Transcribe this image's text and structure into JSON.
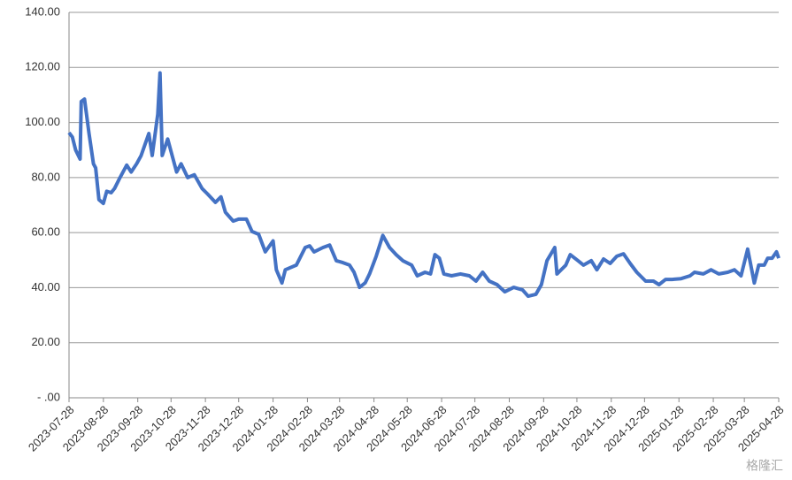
{
  "chart_data": {
    "type": "line",
    "x": [
      "2023-07-28",
      "2023-07-31",
      "2023-08-03",
      "2023-08-07",
      "2023-08-08",
      "2023-08-11",
      "2023-08-15",
      "2023-08-19",
      "2023-08-21",
      "2023-08-24",
      "2023-08-28",
      "2023-08-31",
      "2023-09-04",
      "2023-09-07",
      "2023-09-12",
      "2023-09-18",
      "2023-09-22",
      "2023-09-27",
      "2023-10-01",
      "2023-10-08",
      "2023-10-11",
      "2023-10-16",
      "2023-10-18",
      "2023-10-20",
      "2023-10-25",
      "2023-10-29",
      "2023-11-02",
      "2023-11-06",
      "2023-11-12",
      "2023-11-18",
      "2023-11-25",
      "2023-11-30",
      "2023-12-07",
      "2023-12-12",
      "2023-12-16",
      "2023-12-23",
      "2023-12-28",
      "2024-01-04",
      "2024-01-09",
      "2024-01-15",
      "2024-01-21",
      "2024-01-28",
      "2024-01-31",
      "2024-02-05",
      "2024-02-08",
      "2024-02-18",
      "2024-02-26",
      "2024-03-01",
      "2024-03-05",
      "2024-03-13",
      "2024-03-19",
      "2024-03-25",
      "2024-03-31",
      "2024-04-06",
      "2024-04-10",
      "2024-04-15",
      "2024-04-20",
      "2024-04-24",
      "2024-04-30",
      "2024-05-06",
      "2024-05-12",
      "2024-05-18",
      "2024-05-24",
      "2024-06-01",
      "2024-06-06",
      "2024-06-13",
      "2024-06-18",
      "2024-06-22",
      "2024-06-26",
      "2024-06-30",
      "2024-07-07",
      "2024-07-15",
      "2024-07-23",
      "2024-07-29",
      "2024-08-04",
      "2024-08-10",
      "2024-08-17",
      "2024-08-24",
      "2024-09-01",
      "2024-09-09",
      "2024-09-14",
      "2024-09-21",
      "2024-09-26",
      "2024-10-01",
      "2024-10-08",
      "2024-10-10",
      "2024-10-18",
      "2024-10-22",
      "2024-10-29",
      "2024-11-03",
      "2024-11-10",
      "2024-11-15",
      "2024-11-21",
      "2024-11-27",
      "2024-12-03",
      "2024-12-09",
      "2024-12-15",
      "2024-12-21",
      "2024-12-29",
      "2025-01-05",
      "2025-01-10",
      "2025-01-16",
      "2025-01-22",
      "2025-01-30",
      "2025-02-07",
      "2025-02-11",
      "2025-02-19",
      "2025-02-26",
      "2025-03-05",
      "2025-03-13",
      "2025-03-19",
      "2025-03-25",
      "2025-03-31",
      "2025-04-06",
      "2025-04-10",
      "2025-04-15",
      "2025-04-18",
      "2025-04-22",
      "2025-04-26",
      "2025-04-28"
    ],
    "series": [
      {
        "color": "#4472c4",
        "values": [
          96.3,
          94.7,
          90,
          86.7,
          107.6,
          108.5,
          96,
          85,
          83.5,
          72,
          70.6,
          75,
          74.5,
          76,
          80,
          84.5,
          82,
          85,
          88,
          96,
          88,
          103,
          118,
          88,
          94,
          88,
          82,
          85,
          80,
          81,
          76,
          74,
          71,
          73,
          67.4,
          64.2,
          64.9,
          64.9,
          60.4,
          59.4,
          53,
          57,
          46.5,
          41.7,
          46.5,
          48.2,
          54.6,
          55.2,
          53,
          54.6,
          55.5,
          49.8,
          49.1,
          48.2,
          45.6,
          40.1,
          41.7,
          45,
          51.4,
          59,
          54.6,
          52,
          49.8,
          48.2,
          44.3,
          45.6,
          45,
          52,
          50.7,
          45,
          44.3,
          45,
          44.3,
          42.4,
          45.6,
          42.4,
          41.1,
          38.5,
          40.1,
          39.2,
          36.9,
          37.6,
          41.1,
          49.8,
          54.6,
          45,
          48.2,
          52,
          49.8,
          48.2,
          49.8,
          46.5,
          50.4,
          48.8,
          51.4,
          52.3,
          48.8,
          45.6,
          42.4,
          42.4,
          41.1,
          43,
          43,
          43.3,
          44.3,
          45.6,
          45,
          46.5,
          45,
          45.6,
          46.5,
          44.3,
          54,
          41.7,
          48.2,
          48.2,
          50.7,
          50.7,
          53,
          50.7
        ]
      }
    ],
    "xlim": [
      "2023-07-28",
      "2025-04-28"
    ],
    "xticks": [
      "2023-07-28",
      "2023-08-28",
      "2023-09-28",
      "2023-10-28",
      "2023-11-28",
      "2023-12-28",
      "2024-01-28",
      "2024-02-28",
      "2024-03-28",
      "2024-04-28",
      "2024-05-28",
      "2024-06-28",
      "2024-07-28",
      "2024-08-28",
      "2024-09-28",
      "2024-10-28",
      "2024-11-28",
      "2024-12-28",
      "2025-01-28",
      "2025-02-28",
      "2025-03-28",
      "2025-04-28"
    ],
    "ylim": [
      0,
      140
    ],
    "yticks": [
      {
        "value": 0,
        "label": "- .00"
      },
      {
        "value": 20,
        "label": "20.00"
      },
      {
        "value": 40,
        "label": "40.00"
      },
      {
        "value": 60,
        "label": "60.00"
      },
      {
        "value": 80,
        "label": "80.00"
      },
      {
        "value": 100,
        "label": "100.00"
      },
      {
        "value": 120,
        "label": "120.00"
      },
      {
        "value": 140,
        "label": "140.00"
      }
    ],
    "grid": true,
    "watermark": "格隆汇"
  }
}
